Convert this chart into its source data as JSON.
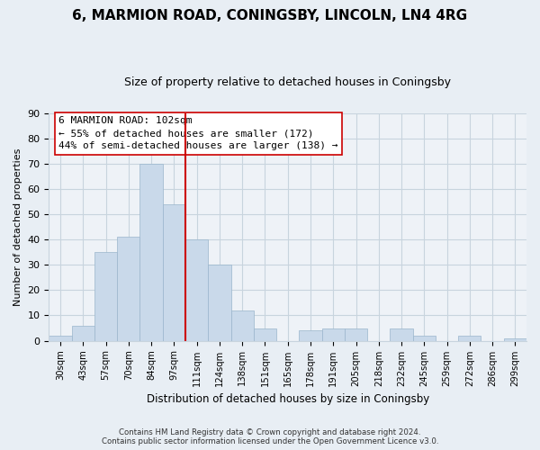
{
  "title": "6, MARMION ROAD, CONINGSBY, LINCOLN, LN4 4RG",
  "subtitle": "Size of property relative to detached houses in Coningsby",
  "xlabel": "Distribution of detached houses by size in Coningsby",
  "ylabel": "Number of detached properties",
  "categories": [
    "30sqm",
    "43sqm",
    "57sqm",
    "70sqm",
    "84sqm",
    "97sqm",
    "111sqm",
    "124sqm",
    "138sqm",
    "151sqm",
    "165sqm",
    "178sqm",
    "191sqm",
    "205sqm",
    "218sqm",
    "232sqm",
    "245sqm",
    "259sqm",
    "272sqm",
    "286sqm",
    "299sqm"
  ],
  "values": [
    2,
    6,
    35,
    41,
    70,
    54,
    40,
    30,
    12,
    5,
    0,
    4,
    5,
    5,
    0,
    5,
    2,
    0,
    2,
    0,
    1
  ],
  "bar_color": "#c9d9ea",
  "bar_edge_color": "#9ab5cc",
  "vline_color": "#cc0000",
  "ylim": [
    0,
    90
  ],
  "yticks": [
    0,
    10,
    20,
    30,
    40,
    50,
    60,
    70,
    80,
    90
  ],
  "ann_line1": "6 MARMION ROAD: 102sqm",
  "ann_line2": "← 55% of detached houses are smaller (172)",
  "ann_line3": "44% of semi-detached houses are larger (138) →",
  "footer_line1": "Contains HM Land Registry data © Crown copyright and database right 2024.",
  "footer_line2": "Contains public sector information licensed under the Open Government Licence v3.0.",
  "background_color": "#e8eef4",
  "plot_bg_color": "#eef2f7",
  "grid_color": "#c8d4de",
  "title_fontsize": 11,
  "subtitle_fontsize": 9
}
